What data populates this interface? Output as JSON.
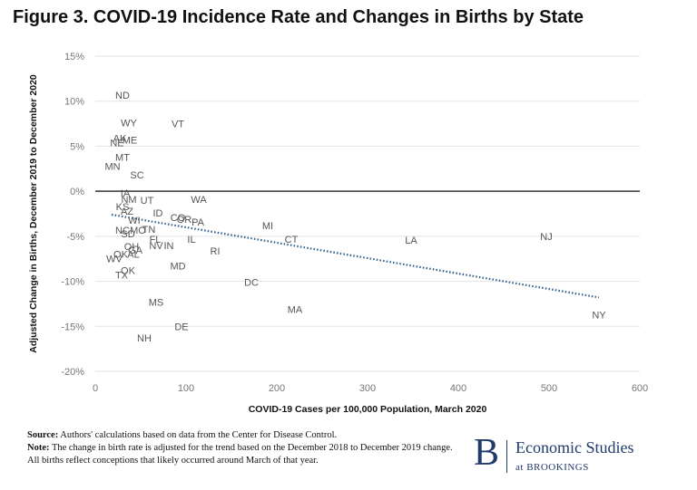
{
  "figure": {
    "title": "Figure 3. COVID-19 Incidence Rate and Changes in Births by State"
  },
  "chart_data": {
    "type": "scatter",
    "xlabel": "COVID-19 Cases per 100,000 Population, March 2020",
    "ylabel": "Adjusted Change in Births, December 2019 to December 2020",
    "xlim": [
      0,
      600
    ],
    "ylim": [
      -20,
      15
    ],
    "x_ticks": [
      0,
      100,
      200,
      300,
      400,
      500,
      600
    ],
    "x_tick_labels": [
      "0",
      "100",
      "200",
      "300",
      "400",
      "500",
      "600"
    ],
    "y_ticks": [
      15,
      10,
      5,
      0,
      -5,
      -10,
      -15,
      -20
    ],
    "y_tick_labels": [
      "15%",
      "10%",
      "5%",
      "0%",
      "-5%",
      "-10%",
      "-15%",
      "-20%"
    ],
    "grid": "horizontal",
    "zero_line": true,
    "trendline": {
      "style": "dotted",
      "color": "#2e5d8a",
      "x": [
        18,
        555
      ],
      "y": [
        -2.6,
        -11.8
      ]
    },
    "points": [
      {
        "label": "ND",
        "x": 30,
        "y": 10.7
      },
      {
        "label": "WY",
        "x": 37,
        "y": 7.6
      },
      {
        "label": "VT",
        "x": 91,
        "y": 7.5
      },
      {
        "label": "AK",
        "x": 27,
        "y": 5.9
      },
      {
        "label": "ME",
        "x": 38,
        "y": 5.7
      },
      {
        "label": "NE",
        "x": 24,
        "y": 5.4
      },
      {
        "label": "MT",
        "x": 30,
        "y": 3.8
      },
      {
        "label": "MN",
        "x": 19,
        "y": 2.8
      },
      {
        "label": "SC",
        "x": 46,
        "y": 1.8
      },
      {
        "label": "IA",
        "x": 33,
        "y": -0.2
      },
      {
        "label": "NM",
        "x": 37,
        "y": -0.9
      },
      {
        "label": "UT",
        "x": 57,
        "y": -1.0
      },
      {
        "label": "WA",
        "x": 114,
        "y": -0.9
      },
      {
        "label": "KS",
        "x": 30,
        "y": -1.7
      },
      {
        "label": "AZ",
        "x": 35,
        "y": -2.2
      },
      {
        "label": "ID",
        "x": 69,
        "y": -2.4
      },
      {
        "label": "WI",
        "x": 43,
        "y": -3.2
      },
      {
        "label": "CO",
        "x": 91,
        "y": -2.9
      },
      {
        "label": "OR",
        "x": 98,
        "y": -3.1
      },
      {
        "label": "PA",
        "x": 113,
        "y": -3.4
      },
      {
        "label": "MI",
        "x": 190,
        "y": -3.8
      },
      {
        "label": "NC",
        "x": 30,
        "y": -4.3
      },
      {
        "label": "MO",
        "x": 47,
        "y": -4.3
      },
      {
        "label": "TN",
        "x": 59,
        "y": -4.2
      },
      {
        "label": "SD",
        "x": 36,
        "y": -4.7
      },
      {
        "label": "FL",
        "x": 66,
        "y": -5.3
      },
      {
        "label": "IL",
        "x": 106,
        "y": -5.3
      },
      {
        "label": "CT",
        "x": 216,
        "y": -5.3
      },
      {
        "label": "LA",
        "x": 348,
        "y": -5.4
      },
      {
        "label": "NJ",
        "x": 497,
        "y": -5.0
      },
      {
        "label": "OH",
        "x": 40,
        "y": -6.1
      },
      {
        "label": "GA",
        "x": 44,
        "y": -6.5
      },
      {
        "label": "NV",
        "x": 67,
        "y": -6.0
      },
      {
        "label": "IN",
        "x": 81,
        "y": -6.0
      },
      {
        "label": "RI",
        "x": 132,
        "y": -6.6
      },
      {
        "label": "OK",
        "x": 28,
        "y": -7.0
      },
      {
        "label": "AL",
        "x": 42,
        "y": -7.0
      },
      {
        "label": "WV",
        "x": 21,
        "y": -7.5
      },
      {
        "label": "MD",
        "x": 91,
        "y": -8.3
      },
      {
        "label": "OK",
        "x": 36,
        "y": -8.8
      },
      {
        "label": "TX",
        "x": 29,
        "y": -9.3
      },
      {
        "label": "DC",
        "x": 172,
        "y": -10.1
      },
      {
        "label": "MS",
        "x": 67,
        "y": -12.3
      },
      {
        "label": "MA",
        "x": 220,
        "y": -13.1
      },
      {
        "label": "NY",
        "x": 555,
        "y": -13.7
      },
      {
        "label": "DE",
        "x": 95,
        "y": -15.0
      },
      {
        "label": "NH",
        "x": 54,
        "y": -16.3
      }
    ]
  },
  "footer": {
    "source_label": "Source:",
    "source_text": "Authors' calculations based on data from the Center for Disease Control.",
    "note_label": "Note:",
    "note_text": "The change in birth rate is adjusted for the trend based on the December 2018 to December 2019 change. All births reflect conceptions that likely occurred around March of that year."
  },
  "brand": {
    "letter": "B",
    "name": "Economic Studies",
    "sub": "at BROOKINGS",
    "color": "#1f3a6b"
  }
}
